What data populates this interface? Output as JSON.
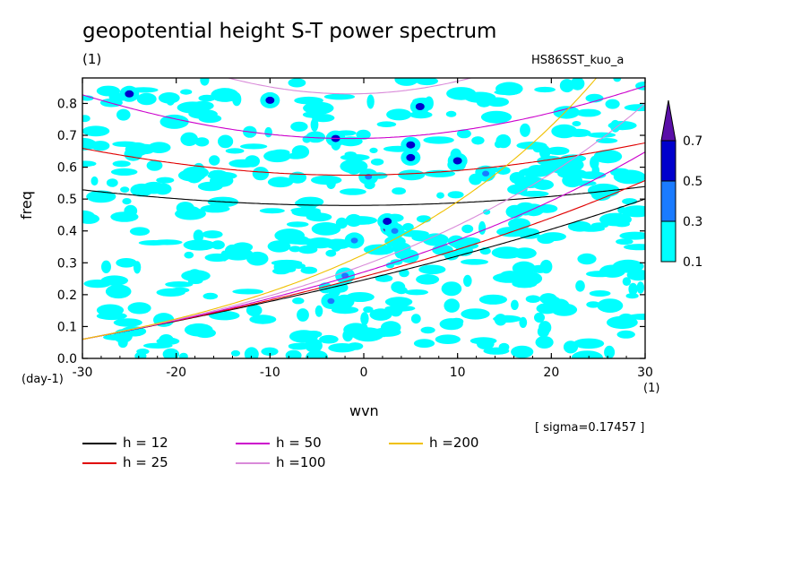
{
  "header": {
    "title": "geopotential height S-T power spectrum",
    "unit_label": "(1)",
    "run_id": "HS86SST_kuo_a"
  },
  "chart_data": {
    "type": "heatmap",
    "title": "geopotential height S-T power spectrum",
    "xlabel": "wvn",
    "ylabel": "freq",
    "x_unit": "(1)",
    "y_unit": "(day-1)",
    "xlim": [
      -30,
      30
    ],
    "ylim": [
      0,
      0.88
    ],
    "x_ticks": [
      -30,
      -20,
      -10,
      0,
      10,
      20,
      30
    ],
    "x_tick_labels": [
      "-30",
      "-20",
      "-10",
      "0",
      "10",
      "20",
      "30"
    ],
    "y_ticks": [
      0,
      0.1,
      0.2,
      0.3,
      0.4,
      0.5,
      0.6,
      0.7,
      0.8
    ],
    "y_tick_labels": [
      "0.0",
      "0.1",
      "0.2",
      "0.3",
      "0.4",
      "0.5",
      "0.6",
      "0.7",
      "0.8"
    ],
    "colorbar": {
      "levels": [
        0.1,
        0.3,
        0.5,
        0.7
      ],
      "labels": [
        "0.1",
        "0.3",
        "0.5",
        "0.7"
      ],
      "colors": [
        "#00ffff",
        "#1a7bff",
        "#0000cc",
        "#5a0fa8"
      ]
    },
    "sigma_text": "[ sigma=0.17457 ]",
    "dispersion_curves": [
      {
        "name": "h = 12",
        "h": 12,
        "color": "#000000"
      },
      {
        "name": "h = 25",
        "h": 25,
        "color": "#e00000"
      },
      {
        "name": "h = 50",
        "h": 50,
        "color": "#cc00cc"
      },
      {
        "name": "h =100",
        "h": 100,
        "color": "#d98ad9"
      },
      {
        "name": "h =200",
        "h": 200,
        "color": "#f0c000"
      }
    ],
    "power_blobs": [
      {
        "x": 2.8,
        "y": 0.41,
        "level": 0.7
      },
      {
        "x": 2.5,
        "y": 0.43,
        "level": 0.5
      },
      {
        "x": 3.3,
        "y": 0.4,
        "level": 0.3
      },
      {
        "x": 5.0,
        "y": 0.67,
        "level": 0.5
      },
      {
        "x": 5.0,
        "y": 0.63,
        "level": 0.5
      },
      {
        "x": 6.0,
        "y": 0.79,
        "level": 0.5
      },
      {
        "x": 10.0,
        "y": 0.62,
        "level": 0.5
      },
      {
        "x": -3.0,
        "y": 0.69,
        "level": 0.5
      },
      {
        "x": -10.0,
        "y": 0.81,
        "level": 0.5
      },
      {
        "x": -25.0,
        "y": 0.83,
        "level": 0.5
      },
      {
        "x": 0.5,
        "y": 0.57,
        "level": 0.3
      },
      {
        "x": -1.0,
        "y": 0.37,
        "level": 0.3
      },
      {
        "x": -3.5,
        "y": 0.18,
        "level": 0.3
      },
      {
        "x": -2.0,
        "y": 0.26,
        "level": 0.3
      },
      {
        "x": 13.0,
        "y": 0.58,
        "level": 0.3
      }
    ]
  },
  "legend": {
    "items": [
      "h = 12",
      "h = 25",
      "h = 50",
      "h =100",
      "h =200"
    ]
  }
}
